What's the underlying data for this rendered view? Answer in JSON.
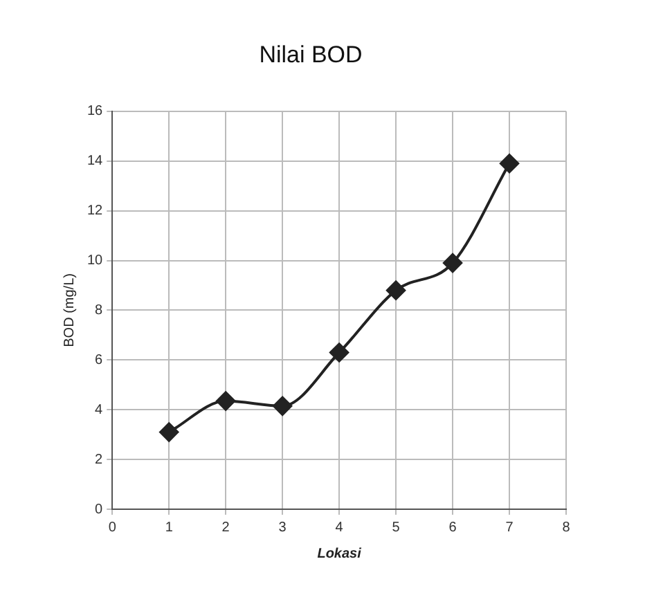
{
  "chart_data": {
    "type": "line",
    "title": "Nilai BOD",
    "xlabel": "Lokasi",
    "ylabel": "BOD (mg/L)",
    "x": [
      1,
      2,
      3,
      4,
      5,
      6,
      7
    ],
    "series": [
      {
        "color": "#222222",
        "values": [
          3.1,
          4.35,
          4.15,
          6.3,
          8.8,
          9.9,
          13.9
        ]
      }
    ],
    "xlim": [
      0,
      8
    ],
    "xticks": [
      0,
      1,
      2,
      3,
      4,
      5,
      6,
      7,
      8
    ],
    "ylim": [
      0,
      16
    ],
    "yticks": [
      0,
      2,
      4,
      6,
      8,
      10,
      12,
      14,
      16
    ],
    "grid": true,
    "marker": "diamond",
    "line_style": "solid",
    "legend": false
  }
}
